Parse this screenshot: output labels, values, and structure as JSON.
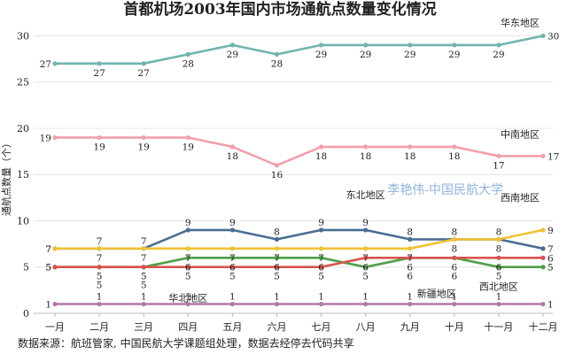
{
  "chart_data": {
    "type": "line",
    "title": "首都机场2003年国内市场通航点数量变化情况",
    "ylabel": "通航点数量（个）",
    "xlabel": "",
    "ylim": [
      0,
      31
    ],
    "yticks": [
      0,
      5,
      10,
      15,
      20,
      25,
      30
    ],
    "grid": "horizontal",
    "categories": [
      "一月",
      "二月",
      "三月",
      "四月",
      "五月",
      "六月",
      "七月",
      "八月",
      "九月",
      "十月",
      "十一月",
      "十二月"
    ],
    "series": [
      {
        "name": "华东地区",
        "color": "#6fb5ae",
        "values": [
          27,
          27,
          27,
          28,
          29,
          28,
          29,
          29,
          29,
          29,
          29,
          30
        ]
      },
      {
        "name": "中南地区",
        "color": "#f2a0ab",
        "values": [
          19,
          19,
          19,
          19,
          18,
          16,
          18,
          18,
          18,
          18,
          17,
          17
        ]
      },
      {
        "name": "东北地区",
        "color": "#4a6d94",
        "values": [
          7,
          7,
          7,
          9,
          9,
          8,
          9,
          9,
          8,
          8,
          8,
          7
        ]
      },
      {
        "name": "西南地区",
        "color": "#f0c233",
        "values": [
          7,
          7,
          7,
          7,
          7,
          7,
          7,
          7,
          7,
          8,
          8,
          9
        ]
      },
      {
        "name": "西北地区",
        "color": "#4f9e4a",
        "values": [
          5,
          5,
          5,
          6,
          6,
          6,
          6,
          5,
          6,
          6,
          5,
          5
        ]
      },
      {
        "name": "华北地区",
        "color": "#d9534f",
        "values": [
          5,
          5,
          5,
          5,
          5,
          5,
          5,
          6,
          6,
          6,
          6,
          6
        ]
      },
      {
        "name": "新疆地区",
        "color": "#b278a8",
        "values": [
          1,
          1,
          1,
          1,
          1,
          1,
          1,
          1,
          1,
          1,
          1,
          1
        ]
      }
    ]
  },
  "watermark": "李艳伟-中国民航大学",
  "source": "数据来源：航班管家, 中国民航大学课题组处理，数据去经停去代码共享"
}
